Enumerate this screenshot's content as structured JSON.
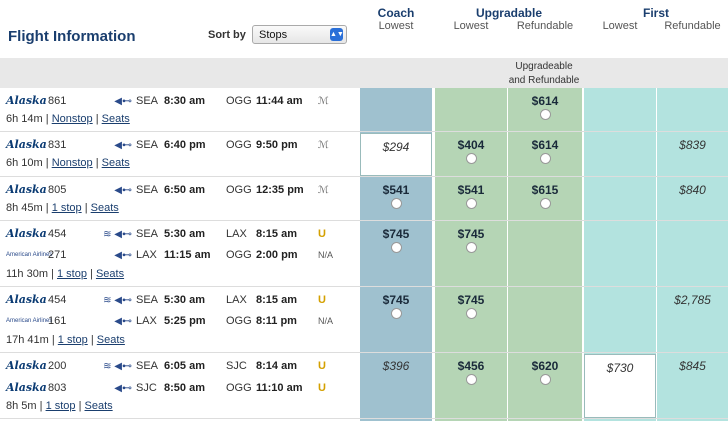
{
  "header": {
    "title": "Flight Information",
    "sort_label": "Sort by",
    "sort_value": "Stops",
    "coach": "Coach",
    "coach_sub": "Lowest",
    "upgradable": "Upgradable",
    "up_lowest": "Lowest",
    "up_refundable": "Refundable",
    "first": "First",
    "first_lowest": "Lowest",
    "first_refundable": "Refundable",
    "band_note_1": "Upgradeable",
    "band_note_2": "and Refundable"
  },
  "rows": [
    {
      "legs": [
        {
          "airline": "Alaska",
          "num": "861",
          "seat_icon": "⟵⊷",
          "from": "SEA",
          "dep": "8:30 am",
          "to": "OGG",
          "arr": "11:44 am",
          "extra": "ℳ"
        }
      ],
      "duration": "6h 14m",
      "stops": "Nonstop",
      "seats": "Seats",
      "coach": "",
      "up_low": "",
      "up_ref": "$614",
      "first_low": "",
      "first_ref": ""
    },
    {
      "legs": [
        {
          "airline": "Alaska",
          "num": "831",
          "from": "SEA",
          "dep": "6:40 pm",
          "to": "OGG",
          "arr": "9:50 pm",
          "extra": "ℳ"
        }
      ],
      "duration": "6h 10m",
      "stops": "Nonstop",
      "seats": "Seats",
      "coach": "$294",
      "up_low": "$404",
      "up_ref": "$614",
      "first_low": "",
      "first_ref": "$839"
    },
    {
      "legs": [
        {
          "airline": "Alaska",
          "num": "805",
          "from": "SEA",
          "dep": "6:50 am",
          "to": "OGG",
          "arr": "12:35 pm",
          "extra": "ℳ"
        }
      ],
      "duration": "8h 45m",
      "stops": "1 stop",
      "seats": "Seats",
      "coach": "$541",
      "up_low": "$541",
      "up_ref": "$615",
      "first_low": "",
      "first_ref": "$840"
    },
    {
      "legs": [
        {
          "airline": "Alaska",
          "num": "454",
          "from": "SEA",
          "dep": "5:30 am",
          "to": "LAX",
          "arr": "8:15 am",
          "extra": "U"
        },
        {
          "airline": "American Airlines",
          "num": "271",
          "from": "LAX",
          "dep": "11:15 am",
          "to": "OGG",
          "arr": "2:00 pm",
          "extra": "N/A"
        }
      ],
      "duration": "11h 30m",
      "stops": "1 stop",
      "seats": "Seats",
      "coach": "$745",
      "up_low": "$745",
      "up_ref": "",
      "first_low": "",
      "first_ref": ""
    },
    {
      "legs": [
        {
          "airline": "Alaska",
          "num": "454",
          "from": "SEA",
          "dep": "5:30 am",
          "to": "LAX",
          "arr": "8:15 am",
          "extra": "U"
        },
        {
          "airline": "American Airlines",
          "num": "161",
          "from": "LAX",
          "dep": "5:25 pm",
          "to": "OGG",
          "arr": "8:11 pm",
          "extra": "N/A"
        }
      ],
      "duration": "17h 41m",
      "stops": "1 stop",
      "seats": "Seats",
      "coach": "$745",
      "up_low": "$745",
      "up_ref": "",
      "first_low": "",
      "first_ref": "$2,785"
    },
    {
      "legs": [
        {
          "airline": "Alaska",
          "num": "200",
          "from": "SEA",
          "dep": "6:05 am",
          "to": "SJC",
          "arr": "8:14 am",
          "extra": "U"
        },
        {
          "airline": "Alaska",
          "num": "803",
          "from": "SJC",
          "dep": "8:50 am",
          "to": "OGG",
          "arr": "11:10 am",
          "extra": "U"
        }
      ],
      "duration": "8h 5m",
      "stops": "1 stop",
      "seats": "Seats",
      "coach": "$396",
      "up_low": "$456",
      "up_ref": "$620",
      "first_low": "$730",
      "first_ref": "$845"
    }
  ]
}
